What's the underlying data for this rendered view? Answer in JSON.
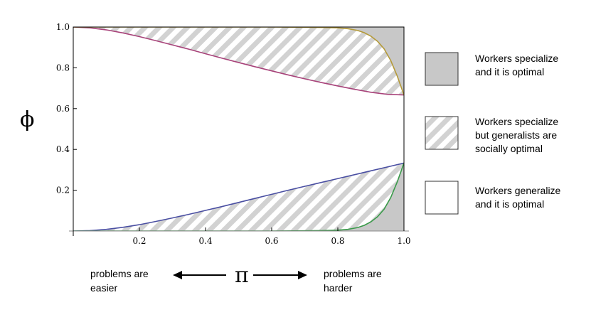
{
  "chart_data": {
    "type": "area",
    "title": "",
    "xlabel": "π",
    "ylabel": "ϕ",
    "xlim": [
      0,
      1
    ],
    "ylim": [
      0,
      1
    ],
    "x_ticks": [
      0.2,
      0.4,
      0.6,
      0.8,
      1.0
    ],
    "x_tick_labels": [
      "0.2",
      "0.4",
      "0.6",
      "0.8",
      "1.0"
    ],
    "y_ticks": [
      0.2,
      0.4,
      0.6,
      0.8,
      1.0
    ],
    "y_tick_labels": [
      "0.2",
      "0.4",
      "0.6",
      "0.8",
      "1.0"
    ],
    "grid": false,
    "legend_position": "right",
    "series": [
      {
        "name": "upper-social-boundary",
        "color": "#a8437a",
        "x": [
          0,
          0.05,
          0.1,
          0.15,
          0.2,
          0.25,
          0.3,
          0.35,
          0.4,
          0.45,
          0.5,
          0.55,
          0.6,
          0.65,
          0.7,
          0.75,
          0.8,
          0.85,
          0.9,
          0.95,
          1.0
        ],
        "y": [
          1.0,
          0.996,
          0.986,
          0.971,
          0.953,
          0.933,
          0.912,
          0.891,
          0.869,
          0.847,
          0.826,
          0.805,
          0.785,
          0.765,
          0.746,
          0.728,
          0.711,
          0.695,
          0.68,
          0.67,
          0.667
        ]
      },
      {
        "name": "upper-specialization-boundary",
        "color": "#b49a3a",
        "x": [
          0,
          0.1,
          0.2,
          0.3,
          0.4,
          0.5,
          0.6,
          0.7,
          0.75,
          0.8,
          0.83,
          0.86,
          0.88,
          0.9,
          0.92,
          0.94,
          0.96,
          0.98,
          1.0
        ],
        "y": [
          1.0,
          1.0,
          1.0,
          1.0,
          1.0,
          1.0,
          1.0,
          0.999,
          0.998,
          0.996,
          0.992,
          0.983,
          0.972,
          0.955,
          0.93,
          0.893,
          0.836,
          0.758,
          0.667
        ]
      },
      {
        "name": "lower-social-boundary",
        "color": "#4a4fa2",
        "x": [
          0,
          0.05,
          0.1,
          0.15,
          0.2,
          0.25,
          0.3,
          0.35,
          0.4,
          0.45,
          0.5,
          0.55,
          0.6,
          0.65,
          0.7,
          0.75,
          0.8,
          0.85,
          0.9,
          0.95,
          1.0
        ],
        "y": [
          0,
          0.002,
          0.008,
          0.018,
          0.031,
          0.047,
          0.064,
          0.082,
          0.101,
          0.12,
          0.14,
          0.16,
          0.18,
          0.2,
          0.219,
          0.238,
          0.257,
          0.276,
          0.295,
          0.314,
          0.333
        ]
      },
      {
        "name": "lower-specialization-boundary",
        "color": "#3a9a4a",
        "x": [
          0,
          0.1,
          0.2,
          0.3,
          0.4,
          0.5,
          0.6,
          0.7,
          0.75,
          0.8,
          0.83,
          0.86,
          0.88,
          0.9,
          0.92,
          0.94,
          0.96,
          0.98,
          1.0
        ],
        "y": [
          0,
          0,
          0,
          0,
          0,
          0,
          0,
          0.001,
          0.002,
          0.004,
          0.008,
          0.017,
          0.028,
          0.045,
          0.07,
          0.107,
          0.164,
          0.242,
          0.333
        ]
      }
    ],
    "regions": [
      {
        "name": "Workers specialize and it is optimal",
        "fill": "#c8c8c8",
        "pattern": "solid"
      },
      {
        "name": "Workers specialize but generalists are socially optimal",
        "fill": "#d2d2d2",
        "pattern": "hatch"
      },
      {
        "name": "Workers generalize and it is optimal",
        "fill": "#ffffff",
        "pattern": "solid"
      }
    ]
  },
  "legend": {
    "items": [
      {
        "line1": "Workers specialize",
        "line2": "and it is optimal",
        "line3": ""
      },
      {
        "line1": "Workers specialize",
        "line2": "but generalists are",
        "line3": "socially optimal"
      },
      {
        "line1": "Workers generalize",
        "line2": "and it is optimal",
        "line3": ""
      }
    ]
  },
  "annotation": {
    "left_line1": "problems are",
    "left_line2": "easier",
    "right_line1": "problems are",
    "right_line2": "harder"
  }
}
